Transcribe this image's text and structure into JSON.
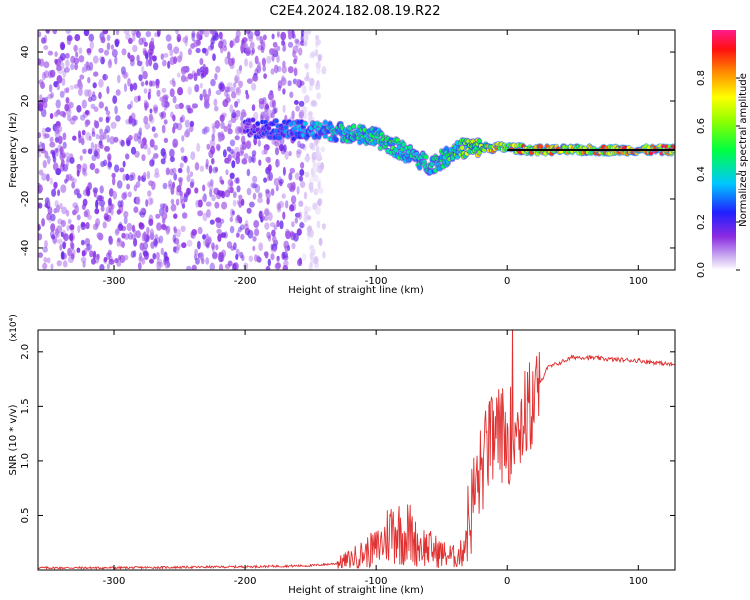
{
  "title": "C2E4.2024.182.08.19.R22",
  "chart_data": [
    {
      "type": "heatmap",
      "xlabel": "Height of straight line (km)",
      "ylabel": "Frequency (Hz)",
      "xlim": [
        -358,
        128
      ],
      "ylim": [
        -49,
        49
      ],
      "xticks": [
        -300,
        -200,
        -100,
        0,
        100
      ],
      "xtick_labels": [
        "-300",
        "-200",
        "-100",
        "0",
        "100"
      ],
      "yticks": [
        -40,
        -20,
        0,
        20,
        40
      ],
      "ytick_labels": [
        "-40",
        "-20",
        "0",
        "20",
        "40"
      ],
      "colorbar": {
        "label": "Normalized spectral amplitude",
        "range": [
          0,
          1
        ],
        "ticks": [
          0.0,
          0.2,
          0.4,
          0.6,
          0.8
        ],
        "tick_labels": [
          "0.0",
          "0.2",
          "0.4",
          "0.6",
          "0.8"
        ]
      },
      "noise_region": {
        "x": [
          -358,
          -155
        ],
        "y": [
          -49,
          49
        ],
        "amplitude": 0.05
      },
      "ridge": {
        "x": [
          -200,
          -160,
          -140,
          -120,
          -100,
          -85,
          -70,
          -60,
          -50,
          -40,
          -30,
          -20,
          -10,
          0,
          20,
          60,
          100,
          128
        ],
        "y": [
          9,
          8,
          8,
          7,
          5,
          1,
          -3,
          -6,
          -4,
          0,
          1,
          1,
          1,
          1,
          0,
          0,
          0,
          0
        ],
        "amplitude": [
          0.2,
          0.35,
          0.4,
          0.45,
          0.5,
          0.5,
          0.45,
          0.45,
          0.5,
          0.55,
          0.65,
          0.7,
          0.8,
          0.85,
          0.85,
          0.85,
          0.9,
          0.95
        ]
      }
    },
    {
      "type": "line",
      "xlabel": "Height of straight line (km)",
      "ylabel": "SNR (10 * v/v)",
      "yscale_label": "(x10⁴)",
      "xlim": [
        -358,
        128
      ],
      "ylim": [
        0,
        2.2
      ],
      "xticks": [
        -300,
        -200,
        -100,
        0,
        100
      ],
      "xtick_labels": [
        "-300",
        "-200",
        "-100",
        "0",
        "100"
      ],
      "yticks": [
        0.5,
        1.0,
        1.5,
        2.0
      ],
      "ytick_labels": [
        "0.5",
        "1.0",
        "1.5",
        "2.0"
      ],
      "color": "#e03030",
      "x": [
        -358,
        -300,
        -200,
        -150,
        -130,
        -120,
        -110,
        -100,
        -95,
        -90,
        -85,
        -80,
        -75,
        -70,
        -60,
        -50,
        -40,
        -35,
        -30,
        -25,
        -20,
        -15,
        -10,
        -5,
        0,
        5,
        10,
        15,
        20,
        25,
        30,
        40,
        50,
        60,
        80,
        100,
        128
      ],
      "y": [
        0.02,
        0.02,
        0.03,
        0.04,
        0.06,
        0.1,
        0.15,
        0.2,
        0.25,
        0.35,
        0.4,
        0.3,
        0.35,
        0.25,
        0.2,
        0.15,
        0.12,
        0.15,
        0.4,
        0.7,
        0.9,
        1.1,
        1.2,
        1.25,
        1.2,
        1.3,
        1.35,
        1.45,
        1.55,
        1.7,
        1.85,
        1.9,
        1.95,
        1.95,
        1.93,
        1.92,
        1.88
      ]
    }
  ]
}
